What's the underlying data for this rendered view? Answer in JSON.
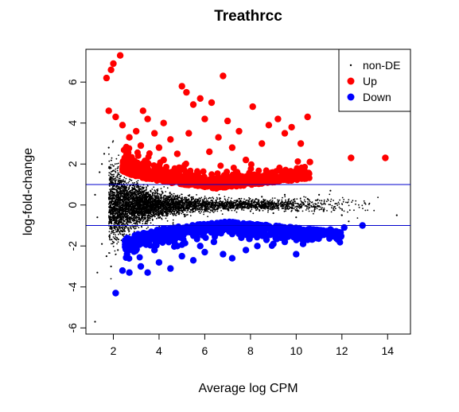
{
  "chart_data": {
    "type": "scatter",
    "title": "Treathrcc",
    "xlabel": "Average log CPM",
    "ylabel": "log-fold-change",
    "xlim": [
      0.8,
      15.0
    ],
    "ylim": [
      -6.3,
      7.6
    ],
    "xticks": [
      2,
      4,
      6,
      8,
      10,
      12,
      14
    ],
    "yticks": [
      -6,
      -4,
      -2,
      0,
      2,
      4,
      6
    ],
    "x_tick_labels": [
      "2",
      "4",
      "6",
      "8",
      "10",
      "12",
      "14"
    ],
    "y_tick_labels": [
      "-6",
      "-4",
      "-2",
      "0",
      "2",
      "4",
      "6"
    ],
    "grid": false,
    "legend": {
      "position": "top-right",
      "entries": [
        "non-DE",
        "Up",
        "Down"
      ]
    },
    "reference_lines": [
      1,
      -1
    ],
    "colors": {
      "non-DE": "#000000",
      "Up": "#ff0000",
      "Down": "#0000ff",
      "reference": "#0000cc"
    },
    "series": [
      {
        "name": "non-DE",
        "points": [
          [
            1.2,
            0.5
          ],
          [
            1.3,
            -0.6
          ],
          [
            1.4,
            1.6
          ],
          [
            1.5,
            -1.9
          ],
          [
            1.6,
            2.5
          ],
          [
            1.7,
            -2.5
          ],
          [
            1.8,
            2.8
          ],
          [
            1.9,
            -3.0
          ],
          [
            2.0,
            0.3
          ],
          [
            2.1,
            -0.2
          ],
          [
            2.3,
            1.4
          ],
          [
            2.4,
            -1.3
          ],
          [
            2.5,
            0.8
          ],
          [
            2.7,
            -0.7
          ],
          [
            3.0,
            0.5
          ],
          [
            3.2,
            -0.4
          ],
          [
            3.5,
            0.6
          ],
          [
            4.0,
            -0.5
          ],
          [
            4.5,
            0.4
          ],
          [
            5.0,
            -0.3
          ],
          [
            5.5,
            0.3
          ],
          [
            6.0,
            -0.2
          ],
          [
            6.5,
            0.2
          ],
          [
            7.0,
            -0.2
          ],
          [
            7.5,
            0.3
          ],
          [
            8.0,
            -0.3
          ],
          [
            8.5,
            0.4
          ],
          [
            9.0,
            -0.4
          ],
          [
            9.5,
            0.5
          ],
          [
            10.0,
            -0.6
          ],
          [
            10.5,
            0.3
          ],
          [
            11.0,
            0.5
          ],
          [
            11.5,
            0.7
          ],
          [
            11.2,
            -0.3
          ],
          [
            12.0,
            -0.5
          ],
          [
            12.3,
            -0.8
          ],
          [
            13.0,
            0.1
          ],
          [
            14.4,
            -0.5
          ],
          [
            1.2,
            -5.7
          ],
          [
            1.3,
            -3.3
          ],
          [
            1.5,
            2.0
          ],
          [
            2.2,
            -2.2
          ]
        ]
      },
      {
        "name": "Up",
        "points": [
          [
            1.7,
            6.2
          ],
          [
            1.9,
            6.6
          ],
          [
            2.0,
            6.9
          ],
          [
            2.3,
            7.3
          ],
          [
            1.8,
            4.6
          ],
          [
            2.1,
            4.3
          ],
          [
            2.4,
            3.9
          ],
          [
            2.7,
            3.3
          ],
          [
            3.0,
            3.6
          ],
          [
            3.2,
            2.9
          ],
          [
            3.5,
            4.2
          ],
          [
            3.8,
            3.5
          ],
          [
            4.0,
            2.8
          ],
          [
            4.2,
            4.0
          ],
          [
            4.5,
            3.2
          ],
          [
            4.8,
            2.5
          ],
          [
            5.0,
            5.8
          ],
          [
            5.2,
            5.5
          ],
          [
            5.5,
            4.9
          ],
          [
            5.8,
            5.2
          ],
          [
            6.0,
            4.2
          ],
          [
            6.3,
            5.0
          ],
          [
            6.8,
            6.3
          ],
          [
            7.0,
            4.1
          ],
          [
            7.5,
            3.6
          ],
          [
            8.1,
            4.8
          ],
          [
            8.5,
            3.0
          ],
          [
            8.8,
            3.9
          ],
          [
            9.2,
            4.2
          ],
          [
            9.5,
            3.5
          ],
          [
            9.8,
            3.8
          ],
          [
            10.2,
            3.0
          ],
          [
            10.5,
            4.3
          ],
          [
            10.6,
            2.1
          ],
          [
            12.4,
            2.3
          ],
          [
            13.9,
            2.3
          ],
          [
            3.0,
            2.0
          ],
          [
            3.5,
            1.8
          ],
          [
            4.0,
            1.6
          ],
          [
            4.5,
            1.5
          ],
          [
            5.0,
            1.4
          ],
          [
            5.5,
            1.3
          ],
          [
            6.0,
            1.25
          ],
          [
            6.5,
            1.2
          ],
          [
            7.0,
            1.2
          ],
          [
            7.5,
            1.2
          ],
          [
            8.0,
            1.3
          ],
          [
            8.5,
            1.3
          ],
          [
            9.0,
            1.4
          ],
          [
            9.5,
            1.5
          ],
          [
            10.0,
            1.6
          ],
          [
            2.5,
            2.3
          ],
          [
            6.2,
            2.6
          ],
          [
            7.8,
            2.2
          ],
          [
            9.8,
            1.2
          ],
          [
            3.3,
            4.6
          ],
          [
            4.2,
            2.2
          ],
          [
            5.3,
            3.5
          ],
          [
            6.6,
            3.3
          ],
          [
            7.2,
            2.8
          ]
        ]
      },
      {
        "name": "Down",
        "points": [
          [
            2.1,
            -4.3
          ],
          [
            2.4,
            -3.2
          ],
          [
            2.7,
            -3.3
          ],
          [
            3.2,
            -3.0
          ],
          [
            3.5,
            -3.3
          ],
          [
            4.0,
            -2.8
          ],
          [
            4.5,
            -3.1
          ],
          [
            5.0,
            -2.5
          ],
          [
            5.5,
            -2.7
          ],
          [
            6.0,
            -2.3
          ],
          [
            6.8,
            -2.4
          ],
          [
            7.2,
            -2.6
          ],
          [
            7.8,
            -2.2
          ],
          [
            8.3,
            -2.0
          ],
          [
            9.0,
            -1.9
          ],
          [
            9.5,
            -1.8
          ],
          [
            10.0,
            -2.4
          ],
          [
            10.5,
            -1.7
          ],
          [
            11.0,
            -1.4
          ],
          [
            11.5,
            -1.2
          ],
          [
            12.1,
            -1.1
          ],
          [
            12.9,
            -1.0
          ],
          [
            3.0,
            -2.0
          ],
          [
            3.5,
            -1.8
          ],
          [
            4.0,
            -1.6
          ],
          [
            4.5,
            -1.5
          ],
          [
            5.0,
            -1.4
          ],
          [
            5.5,
            -1.3
          ],
          [
            6.0,
            -1.25
          ],
          [
            6.5,
            -1.2
          ],
          [
            7.0,
            -1.2
          ],
          [
            7.5,
            -1.2
          ],
          [
            8.0,
            -1.3
          ],
          [
            8.5,
            -1.3
          ],
          [
            9.0,
            -1.4
          ],
          [
            9.5,
            -1.5
          ],
          [
            10.0,
            -1.5
          ],
          [
            2.6,
            -2.4
          ],
          [
            3.8,
            -2.2
          ],
          [
            6.4,
            -1.8
          ],
          [
            7.6,
            -1.6
          ],
          [
            8.7,
            -1.7
          ],
          [
            10.3,
            -1.9
          ],
          [
            4.8,
            -2.0
          ],
          [
            5.8,
            -2.0
          ]
        ]
      }
    ]
  }
}
